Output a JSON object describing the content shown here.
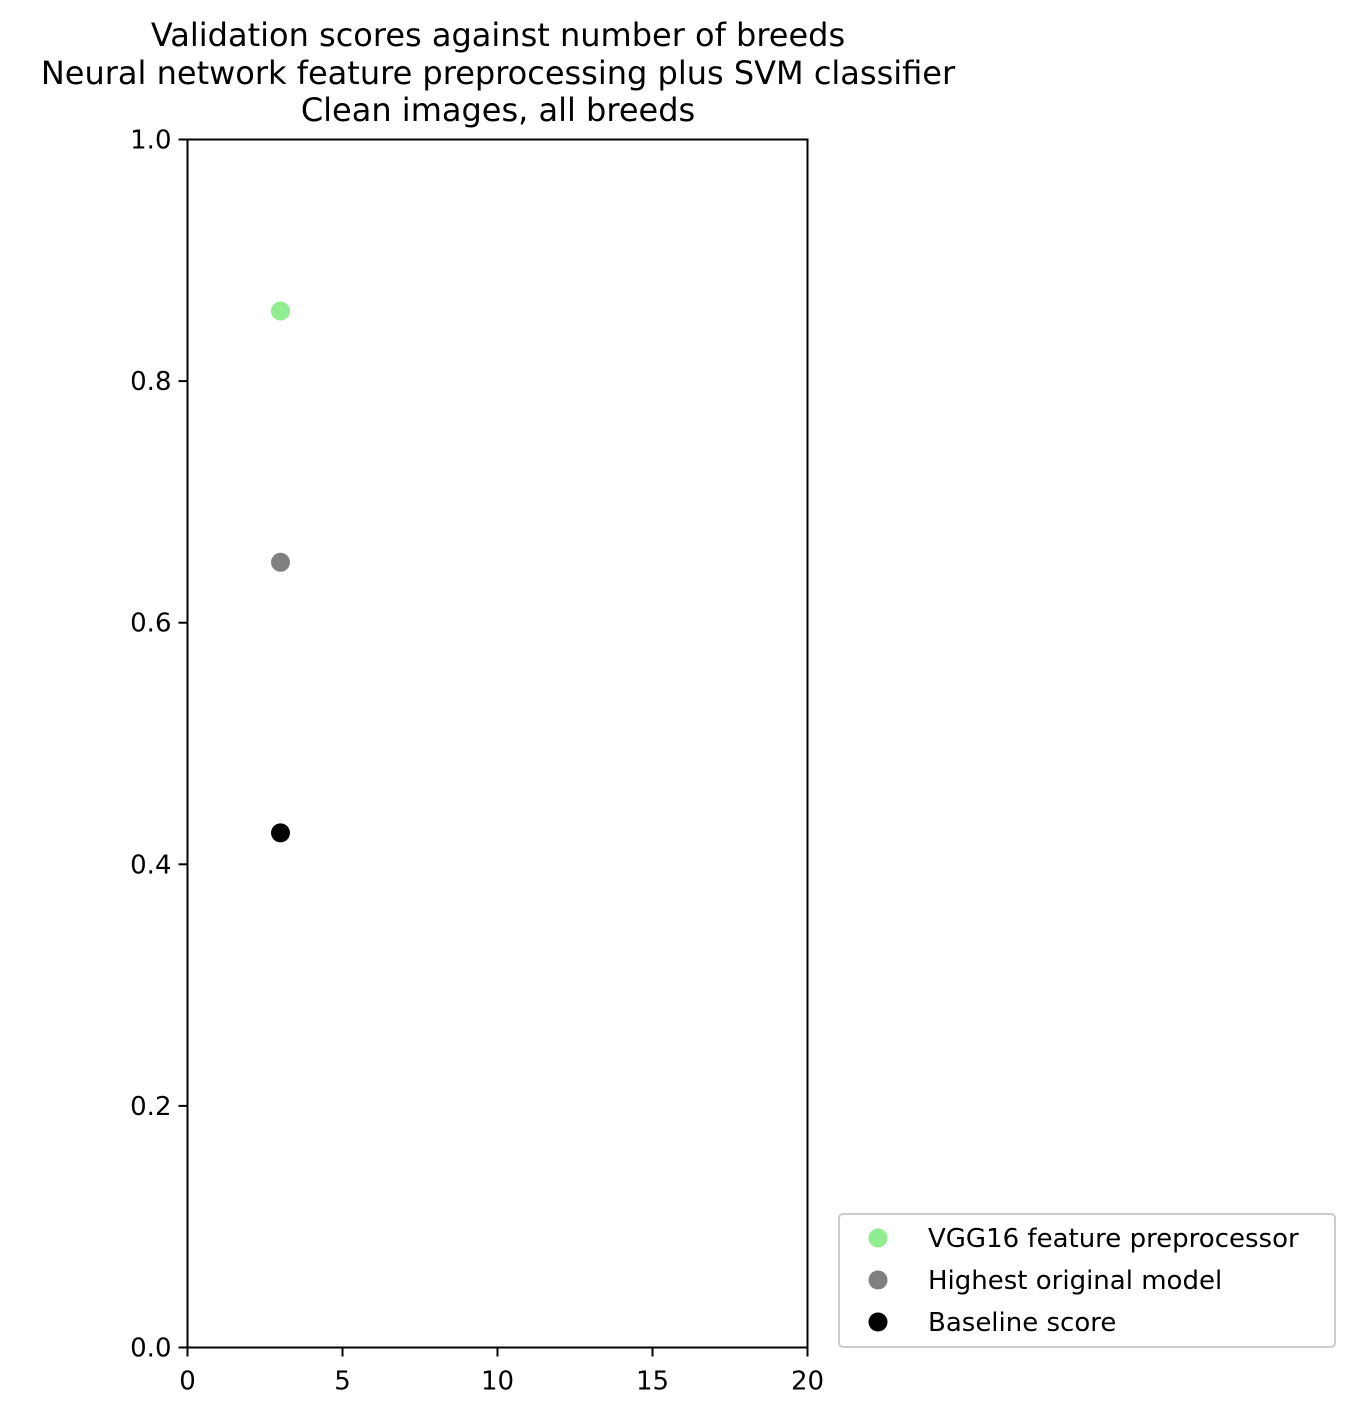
{
  "chart_data": {
    "type": "scatter",
    "title_lines": [
      "Validation scores against number of breeds",
      "Neural network feature preprocessing plus SVM classifier",
      "Clean images, all breeds"
    ],
    "xlabel": "",
    "ylabel": "",
    "xlim": [
      0,
      20
    ],
    "ylim": [
      0.0,
      1.0
    ],
    "x_ticks": [
      0,
      5,
      10,
      15,
      20
    ],
    "x_tick_labels": [
      "0",
      "5",
      "10",
      "15",
      "20"
    ],
    "y_ticks": [
      0.0,
      0.2,
      0.4,
      0.6,
      0.8,
      1.0
    ],
    "y_tick_labels": [
      "0.0",
      "0.2",
      "0.4",
      "0.6",
      "0.8",
      "1.0"
    ],
    "grid": false,
    "legend_position": "lower right, outside plot",
    "series": [
      {
        "name": "VGG16 feature preprocessor",
        "color": "#90ee90",
        "points": [
          {
            "x": 3,
            "y": 0.858
          }
        ]
      },
      {
        "name": "Highest original model",
        "color": "#808080",
        "points": [
          {
            "x": 3,
            "y": 0.65
          }
        ]
      },
      {
        "name": "Baseline score",
        "color": "#000000",
        "points": [
          {
            "x": 3,
            "y": 0.426
          }
        ]
      }
    ]
  }
}
